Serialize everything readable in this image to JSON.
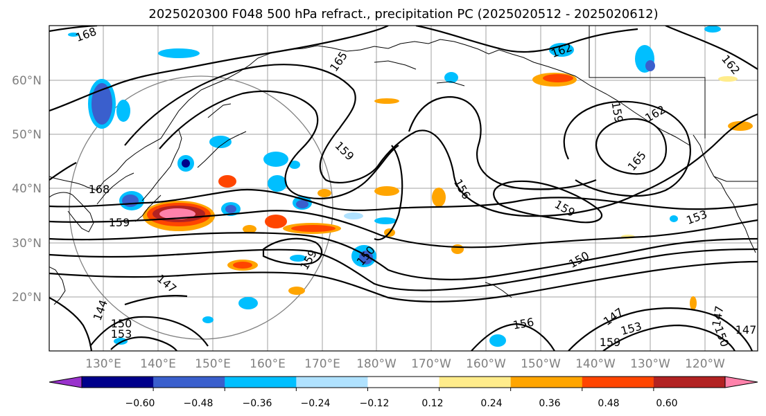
{
  "title": "2025020300 F048 500 hPa refract., precipitation PC (2025020512 - 2025020612)",
  "lat_labels": [
    "60°N",
    "50°N",
    "40°N",
    "30°N",
    "20°N"
  ],
  "lon_labels": [
    "130°E",
    "140°E",
    "150°E",
    "160°E",
    "170°E",
    "180°W",
    "170°W",
    "160°W",
    "150°W",
    "140°W",
    "130°W",
    "120°W"
  ],
  "contour_labels": [
    "168",
    "165",
    "162",
    "162",
    "159",
    "159",
    "162",
    "165",
    "168",
    "159",
    "156",
    "159",
    "153",
    "150",
    "159",
    "150",
    "147",
    "144",
    "147",
    "147",
    "153",
    "150",
    "147",
    "159",
    "156",
    "153",
    "150"
  ],
  "colorbar": {
    "colors": [
      "#9932cc",
      "#00008b",
      "#3a5fcd",
      "#00bfff",
      "#b0e2ff",
      "#ffffff",
      "#ffec8b",
      "#ffa500",
      "#ff4500",
      "#b22222",
      "#ff82ab"
    ],
    "tick_labels": [
      "−0.60",
      "−0.48",
      "−0.36",
      "−0.24",
      "−0.12",
      "0.12",
      "0.24",
      "0.36",
      "0.48",
      "0.60"
    ]
  },
  "colors": {
    "grid": "#a0a0a0",
    "axis_label": "#7f7f7f"
  }
}
